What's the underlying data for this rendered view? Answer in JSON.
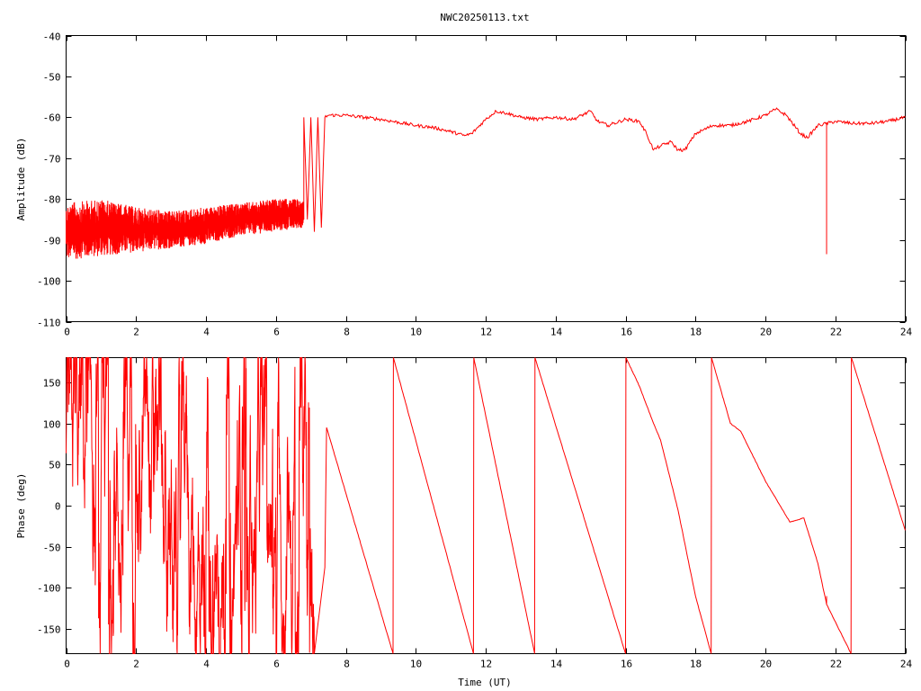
{
  "chart_data": {
    "title": "NWC20250113.txt",
    "colors": {
      "series": "#ff0000",
      "axes": "#000000",
      "background": "#ffffff"
    },
    "panels": [
      {
        "type": "line",
        "xlabel": "",
        "ylabel": "Amplitude (dB)",
        "xlim": [
          0,
          24
        ],
        "ylim": [
          -110,
          -40
        ],
        "xticks": [
          0,
          2,
          4,
          6,
          8,
          10,
          12,
          14,
          16,
          18,
          20,
          22,
          24
        ],
        "yticks": [
          -110,
          -100,
          -90,
          -80,
          -70,
          -60,
          -50,
          -40
        ],
        "grid": false,
        "legend": "none",
        "series": [
          {
            "noise_band": {
              "x": [
                0,
                1,
                2,
                3,
                4,
                5,
                6,
                6.8
              ],
              "low": [
                -95,
                -94,
                -93,
                -92,
                -91,
                -89,
                -88,
                -87
              ],
              "high": [
                -81,
                -80,
                -82,
                -83,
                -82,
                -81,
                -80,
                -80
              ]
            },
            "x": [
              6.8,
              6.9,
              7.0,
              7.1,
              7.2,
              7.3,
              7.4,
              7.5,
              8.0,
              9.0,
              10.0,
              10.5,
              11.0,
              11.4,
              11.6,
              12.0,
              12.3,
              12.6,
              13.0,
              13.5,
              14.0,
              14.5,
              15.0,
              15.2,
              15.5,
              16.0,
              16.4,
              16.6,
              16.8,
              17.0,
              17.3,
              17.5,
              17.7,
              18.0,
              18.5,
              19.0,
              19.5,
              20.0,
              20.3,
              20.6,
              21.0,
              21.2,
              21.5,
              22.0,
              22.5,
              23.0,
              23.5,
              24.0
            ],
            "values": [
              -60,
              -85,
              -60,
              -88,
              -60,
              -87,
              -60,
              -59.5,
              -59.5,
              -60.5,
              -62,
              -62.5,
              -63.5,
              -64.5,
              -64,
              -60.5,
              -58.5,
              -59,
              -60,
              -60.5,
              -60,
              -60.5,
              -58.5,
              -61,
              -62,
              -60.5,
              -61,
              -64,
              -68,
              -67,
              -66,
              -68,
              -68,
              -64,
              -62,
              -62,
              -61,
              -59.5,
              -58,
              -59.5,
              -64,
              -65,
              -62,
              -61,
              -61.5,
              -61.5,
              -61,
              -60
            ],
            "spikes": [
              {
                "x": 21.75,
                "y": -93.5
              }
            ]
          }
        ]
      },
      {
        "type": "line",
        "xlabel": "Time (UT)",
        "ylabel": "Phase (deg)",
        "xlim": [
          0,
          24
        ],
        "ylim": [
          -180,
          180
        ],
        "xticks": [
          0,
          2,
          4,
          6,
          8,
          10,
          12,
          14,
          16,
          18,
          20,
          22,
          24
        ],
        "yticks": [
          -150,
          -100,
          -50,
          0,
          50,
          100,
          150
        ],
        "grid": false,
        "legend": "none",
        "series": [
          {
            "noise_range": [
              0,
              7.1
            ],
            "x": [
              7.4,
              7.45,
              9.35,
              9.36,
              11.65,
              11.66,
              13.4,
              13.41,
              16.0,
              16.01,
              16.4,
              16.8,
              17.0,
              17.5,
              18.0,
              18.45,
              18.46,
              19.0,
              19.3,
              20.0,
              20.7,
              21.1,
              21.5,
              21.75,
              22.45,
              22.46,
              24.0
            ],
            "values": [
              -75,
              95,
              -180,
              180,
              -180,
              180,
              -180,
              180,
              -180,
              180,
              145,
              100,
              80,
              -5,
              -110,
              -180,
              180,
              100,
              90,
              30,
              -20,
              -15,
              -70,
              -120,
              -180,
              180,
              -30
            ],
            "spikes": [
              {
                "x": 21.75,
                "y": -110
              }
            ]
          }
        ]
      }
    ]
  }
}
